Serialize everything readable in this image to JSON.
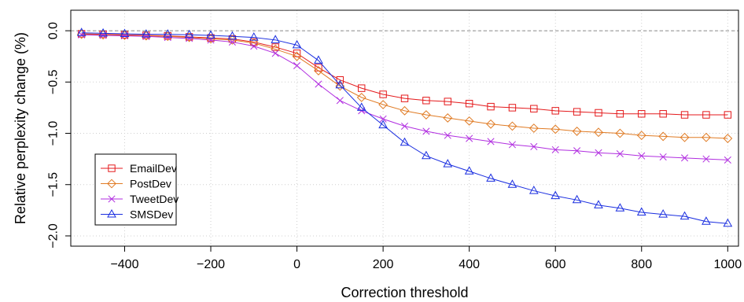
{
  "chart_data": {
    "type": "line",
    "title": "",
    "xlabel": "Correction threshold",
    "ylabel": "Relative perplexity change (%)",
    "xlim": [
      -525,
      1025
    ],
    "ylim": [
      -2.1,
      0.2
    ],
    "xticks": [
      -400,
      -200,
      0,
      200,
      400,
      600,
      800,
      1000
    ],
    "xtick_labels": [
      "−400",
      "−200",
      "0",
      "200",
      "400",
      "600",
      "800",
      "1000"
    ],
    "yticks": [
      0.0,
      -0.5,
      -1.0,
      -1.5,
      -2.0
    ],
    "ytick_labels": [
      "0.0",
      "−0.5",
      "−1.0",
      "−1.5",
      "−2.0"
    ],
    "grid": true,
    "reference_line_y": 0,
    "legend_position": "bottom-left",
    "x": [
      -500,
      -450,
      -400,
      -350,
      -300,
      -250,
      -200,
      -150,
      -100,
      -50,
      0,
      50,
      100,
      150,
      200,
      250,
      300,
      350,
      400,
      450,
      500,
      550,
      600,
      650,
      700,
      750,
      800,
      850,
      900,
      950,
      1000
    ],
    "series": [
      {
        "name": "EmailDev",
        "color": "#e41a1c",
        "marker": "square",
        "values": [
          -0.03,
          -0.035,
          -0.04,
          -0.045,
          -0.05,
          -0.06,
          -0.07,
          -0.08,
          -0.11,
          -0.16,
          -0.22,
          -0.36,
          -0.48,
          -0.56,
          -0.62,
          -0.66,
          -0.68,
          -0.69,
          -0.71,
          -0.74,
          -0.75,
          -0.76,
          -0.78,
          -0.79,
          -0.8,
          -0.81,
          -0.81,
          -0.81,
          -0.82,
          -0.82,
          -0.82
        ]
      },
      {
        "name": "PostDev",
        "color": "#e07b24",
        "marker": "diamond",
        "values": [
          -0.035,
          -0.04,
          -0.045,
          -0.05,
          -0.055,
          -0.065,
          -0.08,
          -0.09,
          -0.12,
          -0.18,
          -0.25,
          -0.39,
          -0.54,
          -0.65,
          -0.72,
          -0.78,
          -0.82,
          -0.85,
          -0.88,
          -0.91,
          -0.93,
          -0.95,
          -0.96,
          -0.98,
          -0.99,
          -1.0,
          -1.02,
          -1.03,
          -1.04,
          -1.04,
          -1.05
        ]
      },
      {
        "name": "TweetDev",
        "color": "#b12ee0",
        "marker": "x",
        "values": [
          -0.04,
          -0.045,
          -0.05,
          -0.055,
          -0.065,
          -0.075,
          -0.09,
          -0.11,
          -0.15,
          -0.22,
          -0.34,
          -0.52,
          -0.68,
          -0.78,
          -0.86,
          -0.93,
          -0.98,
          -1.02,
          -1.05,
          -1.08,
          -1.11,
          -1.13,
          -1.16,
          -1.17,
          -1.19,
          -1.2,
          -1.22,
          -1.23,
          -1.24,
          -1.25,
          -1.26
        ]
      },
      {
        "name": "SMSDev",
        "color": "#1a2ee0",
        "marker": "triangle",
        "values": [
          -0.02,
          -0.025,
          -0.03,
          -0.035,
          -0.035,
          -0.04,
          -0.045,
          -0.055,
          -0.065,
          -0.09,
          -0.14,
          -0.29,
          -0.53,
          -0.75,
          -0.92,
          -1.09,
          -1.22,
          -1.3,
          -1.37,
          -1.44,
          -1.5,
          -1.56,
          -1.61,
          -1.65,
          -1.7,
          -1.73,
          -1.77,
          -1.79,
          -1.81,
          -1.86,
          -1.88
        ]
      }
    ]
  }
}
